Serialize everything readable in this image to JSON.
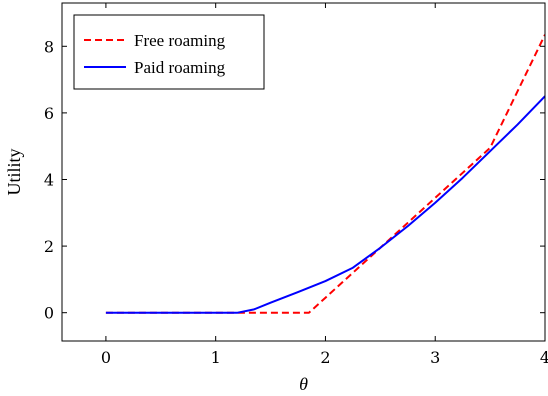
{
  "chart_data": {
    "type": "line",
    "title": "",
    "xlabel": "θ",
    "ylabel": "Utility",
    "xlim": [
      -0.4,
      4.0
    ],
    "ylim": [
      -0.85,
      9.3
    ],
    "xticks": [
      0,
      1,
      2,
      3,
      4
    ],
    "yticks": [
      0,
      2,
      4,
      6,
      8
    ],
    "grid": false,
    "legend_position": "top-left",
    "series": [
      {
        "name": "Free roaming",
        "color": "#ff0000",
        "dash": "dashed",
        "x": [
          0,
          0.5,
          1.0,
          1.5,
          1.85,
          2.0,
          2.5,
          3.0,
          3.5,
          4.0
        ],
        "y": [
          0,
          0,
          0,
          0,
          0,
          0.45,
          1.95,
          3.45,
          4.95,
          8.35
        ]
      },
      {
        "name": "Paid roaming",
        "color": "#0000ff",
        "dash": "solid",
        "x": [
          0,
          0.5,
          1.0,
          1.2,
          1.35,
          1.5,
          1.75,
          2.0,
          2.25,
          2.5,
          2.75,
          3.0,
          3.25,
          3.5,
          3.75,
          4.0
        ],
        "y": [
          0,
          0,
          0,
          0,
          0.1,
          0.3,
          0.62,
          0.95,
          1.35,
          1.95,
          2.6,
          3.3,
          4.05,
          4.85,
          5.65,
          6.5
        ]
      }
    ]
  }
}
